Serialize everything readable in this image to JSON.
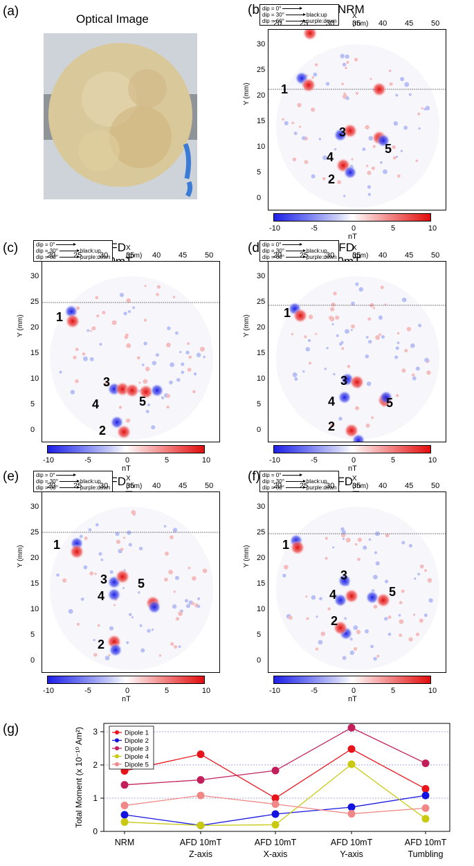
{
  "panels": {
    "a": {
      "label": "(a)",
      "title": "Optical Image"
    },
    "b": {
      "label": "(b)",
      "title": "NRM"
    },
    "c": {
      "label": "(c)",
      "title": "AFD 10mT Z-axis"
    },
    "d": {
      "label": "(d)",
      "title": "AFD 10mT X-axis"
    },
    "e": {
      "label": "(e)",
      "title": "AFD 10mT Y-axis"
    },
    "f": {
      "label": "(f)",
      "title": "AFD 10mT Tumbling"
    },
    "g": {
      "label": "(g)"
    }
  },
  "map_common": {
    "x_axis_label": "X (mm)",
    "y_axis_label": "Y (mm)",
    "x_ticks": [
      "20",
      "25",
      "30",
      "35",
      "40",
      "45",
      "50"
    ],
    "y_ticks": [
      "30",
      "25",
      "20",
      "15",
      "10",
      "5",
      "0"
    ],
    "colorbar_ticks": [
      "-10",
      "-5",
      "0",
      "5",
      "10"
    ],
    "colorbar_unit": "nT",
    "colormap": {
      "negative": "#1f1fe6",
      "zero": "#ffffff",
      "positive": "#e10d0d"
    },
    "dip_legend": [
      {
        "dip": "dip = 0°",
        "note": ""
      },
      {
        "dip": "dip = 30°",
        "note": "black:up"
      },
      {
        "dip": "dip = 60°",
        "note": "purple:down"
      }
    ],
    "dipole_labels": [
      "1",
      "2",
      "3",
      "4",
      "5"
    ]
  },
  "chart_data": {
    "type": "line",
    "categories": [
      "NRM",
      "AFD 10mT Z-axis",
      "AFD 10mT X-axis",
      "AFD 10mT Y-axis",
      "AFD 10mT Tumbling"
    ],
    "category_lines": [
      [
        "NRM",
        ""
      ],
      [
        "AFD 10mT",
        "Z-axis"
      ],
      [
        "AFD 10mT",
        "X-axis"
      ],
      [
        "AFD 10mT",
        "Y-axis"
      ],
      [
        "AFD 10mT",
        "Tumbling"
      ]
    ],
    "ylabel": "Total Moment (x 10⁻¹⁰ Am²)",
    "ylim": [
      0,
      3.25
    ],
    "yticks": [
      0,
      1,
      2,
      3
    ],
    "grid": "horizontal dotted at 1, 2, 3",
    "legend_position": "top-left",
    "series": [
      {
        "name": "Dipole 1",
        "color": "#e8141c",
        "values": [
          1.82,
          2.32,
          1.0,
          2.48,
          1.28
        ]
      },
      {
        "name": "Dipole 2",
        "color": "#1414e0",
        "values": [
          0.5,
          0.18,
          0.52,
          0.73,
          1.08
        ]
      },
      {
        "name": "Dipole 3",
        "color": "#c21e5a",
        "values": [
          1.4,
          1.55,
          1.83,
          3.12,
          2.05
        ]
      },
      {
        "name": "Dipole 4",
        "color": "#c9c912",
        "values": [
          0.28,
          0.18,
          0.2,
          2.02,
          0.38
        ]
      },
      {
        "name": "Dipole 5",
        "color": "#f08888",
        "values": [
          0.78,
          1.08,
          0.82,
          0.53,
          0.7
        ]
      }
    ]
  }
}
